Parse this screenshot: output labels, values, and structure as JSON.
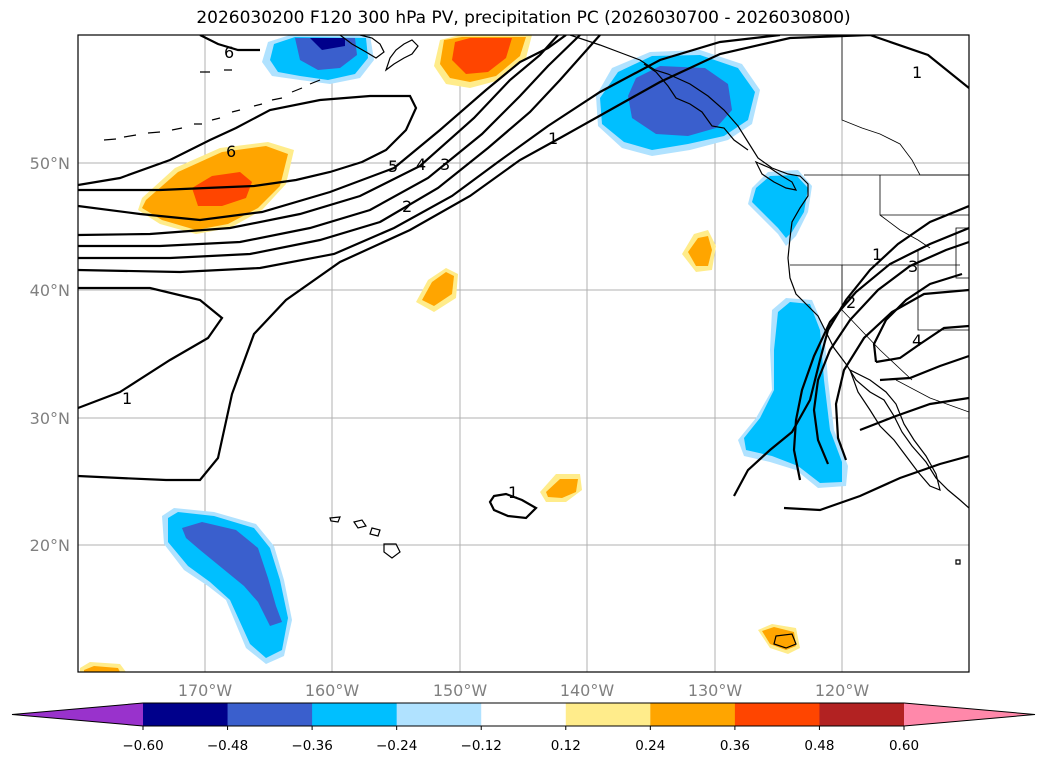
{
  "title": "2026030200 F120 300 hPa PV, precipitation PC (2026030700 - 2026030800)",
  "lat_labels": [
    "50°N",
    "40°N",
    "30°N",
    "20°N"
  ],
  "lon_labels": [
    "170°W",
    "160°W",
    "150°W",
    "140°W",
    "130°W",
    "120°W"
  ],
  "contour_labels": [
    "6",
    "6",
    "5",
    "4",
    "3",
    "2",
    "1",
    "1",
    "1",
    "1",
    "1",
    "2",
    "3",
    "4"
  ],
  "colorbar": {
    "ticks": [
      "−0.60",
      "−0.48",
      "−0.36",
      "−0.24",
      "−0.12",
      "0.12",
      "0.24",
      "0.36",
      "0.48",
      "0.60"
    ],
    "colors": [
      "#9932cc",
      "#00008b",
      "#3a5fcd",
      "#00bfff",
      "#b0e2ff",
      "#ffffff",
      "#ffec8b",
      "#ffa500",
      "#ff4500",
      "#b22222",
      "#ff88aa"
    ]
  },
  "colors": {
    "neg_light": "#b0e2ff",
    "neg_mid": "#00bfff",
    "neg_strong": "#3a5fcd",
    "neg_extreme": "#00008b",
    "pos_light": "#ffec8b",
    "pos_mid": "#ffa500",
    "pos_strong": "#ff4500"
  }
}
